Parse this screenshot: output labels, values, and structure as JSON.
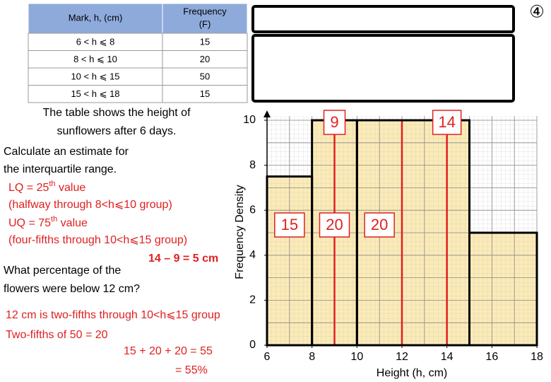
{
  "table": {
    "header": {
      "mark": "Mark, h, (cm)",
      "frequency": [
        "Frequency",
        "(F)"
      ]
    },
    "rows": [
      [
        "6 < h ⩽ 8",
        15
      ],
      [
        "8 < h ⩽ 10",
        20
      ],
      [
        "10 < h ⩽ 15",
        50
      ],
      [
        "15 < h ⩽ 18",
        15
      ]
    ]
  },
  "corner_label": "④",
  "text": {
    "intro": [
      "The table shows the height of",
      "sunflowers after 6 days."
    ],
    "q1": [
      "Calculate an estimate for",
      "the interquartile range."
    ],
    "lq": [
      "LQ = 25",
      "th",
      " value"
    ],
    "lq_note": "(halfway through 8<h⩽10 group)",
    "uq": [
      "UQ = 75",
      "th",
      " value"
    ],
    "uq_note": "(four-fifths through 10<h⩽15 group)",
    "iqr": "14 – 9 = 5 cm",
    "q2": [
      "What percentage of the",
      "flowers were below 12 cm?"
    ],
    "a2": [
      "12 cm is two-fifths through 10<h⩽15 group",
      "Two-fifths of 50 = 20",
      "15 + 20 + 20 = 55",
      "= 55%"
    ]
  },
  "chart_data": {
    "type": "histogram",
    "bins": [
      6,
      8,
      10,
      15,
      18
    ],
    "values": [
      7.5,
      10,
      10,
      5
    ],
    "color": "#fcebb6",
    "edge_color": "#000000",
    "xlim": [
      6,
      18
    ],
    "ylim": [
      0,
      10
    ],
    "xticks": [
      6,
      8,
      10,
      12,
      14,
      16,
      18
    ],
    "yticks": [
      0,
      2,
      4,
      6,
      8,
      10
    ],
    "xlabel": "Height (h, cm)",
    "ylabel": "Frequency Density",
    "grid": true,
    "quartile_lines": [
      9,
      14
    ],
    "cut_line": 12,
    "line_color": "#e02020",
    "region_counts": [
      15,
      20,
      20
    ]
  }
}
